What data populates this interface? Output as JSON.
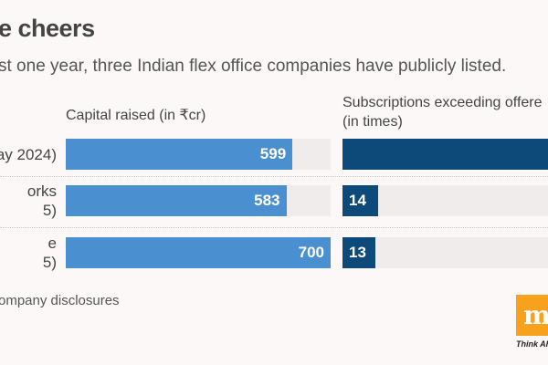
{
  "title": "e cheers",
  "subtitle": "st one year, three Indian flex office companies have publicly listed.",
  "source": "ompany disclosures",
  "logo": {
    "letter": "m",
    "tagline": "Think Ahe"
  },
  "colors": {
    "capital": "#4a90d0",
    "subscription": "#0d4a79",
    "track": "#f0ecec",
    "background": "#fdf8f8",
    "logo": "#f7a11d"
  },
  "chart_data": [
    {
      "type": "bar",
      "orientation": "horizontal",
      "title": "Capital raised (in ₹cr)",
      "categories": [
        [
          "ay 2024)"
        ],
        [
          "orks",
          "5)"
        ],
        [
          "e",
          "5)"
        ]
      ],
      "values": [
        599,
        583,
        700
      ],
      "labels": [
        "599",
        "583",
        "700"
      ],
      "xlim": [
        0,
        700
      ]
    },
    {
      "type": "bar",
      "orientation": "horizontal",
      "title_lines": [
        "Subscriptions exceeding offere",
        "(in times)"
      ],
      "values": [
        null,
        14,
        13
      ],
      "labels": [
        "",
        "14",
        "13"
      ]
    }
  ]
}
